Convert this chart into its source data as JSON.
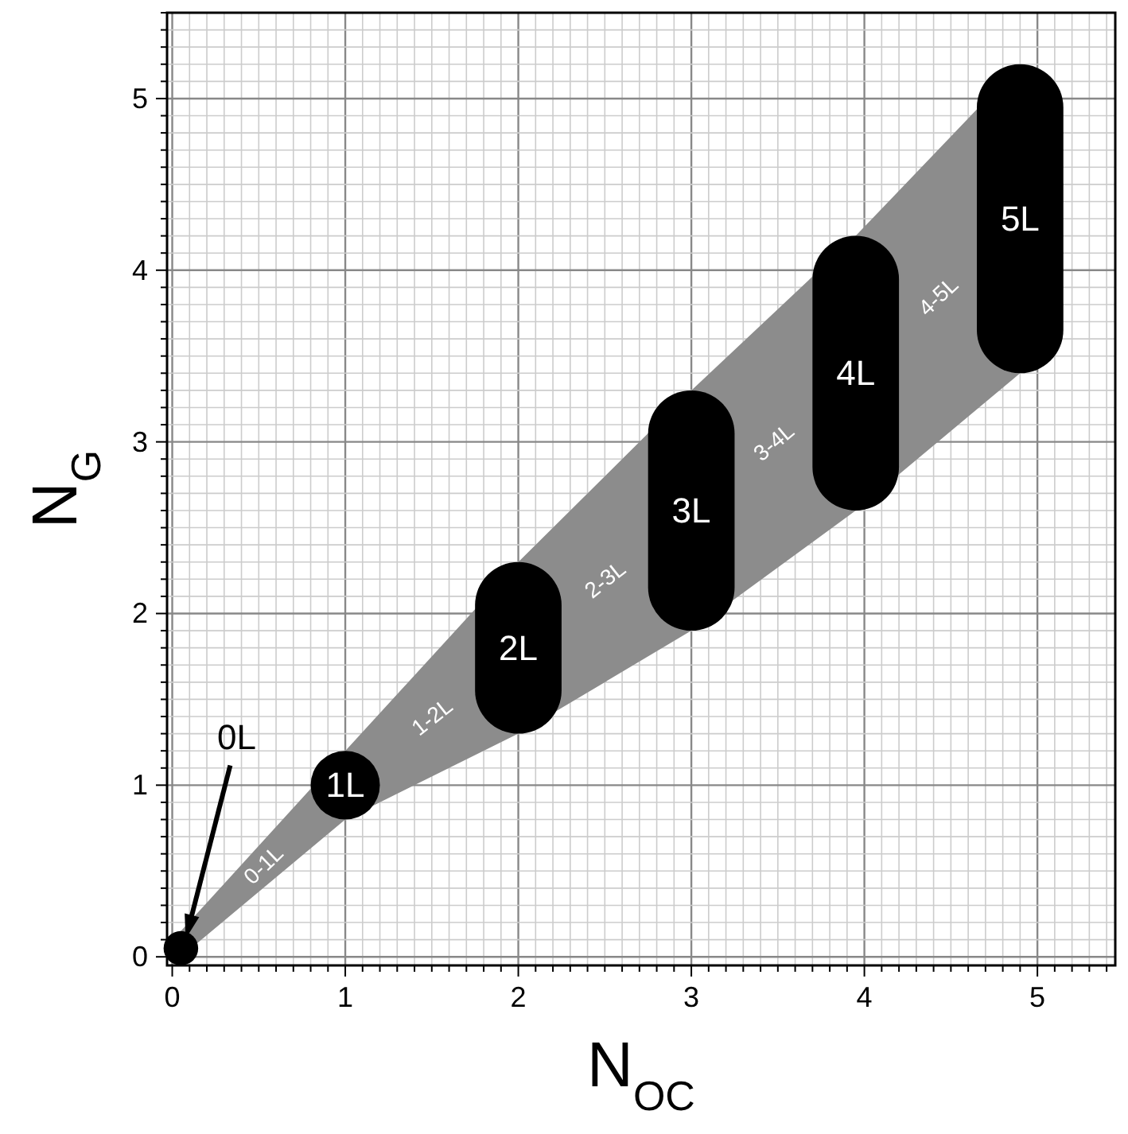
{
  "chart_data": {
    "type": "bar",
    "xlabel": "N$_{OC}$",
    "ylabel": "N$_{G}$",
    "xlim": [
      -0.03,
      5.45
    ],
    "ylim": [
      -0.05,
      5.5
    ],
    "grid": true,
    "xticks": [
      0,
      {
        "value": 0.1,
        "label": null
      },
      {
        "value": 0.2,
        "label": null
      },
      {
        "value": 0.3,
        "label": null
      },
      {
        "value": 0.4,
        "label": null
      },
      {
        "value": 0.5,
        "label": null
      },
      {
        "value": 0.6,
        "label": null
      },
      {
        "value": 0.7,
        "label": null
      },
      {
        "value": 0.8,
        "label": null
      },
      {
        "value": 0.9,
        "label": null
      },
      1,
      {
        "value": 1.1,
        "label": null
      },
      {
        "value": 1.2,
        "label": null
      },
      {
        "value": 1.3,
        "label": null
      },
      {
        "value": 1.4,
        "label": null
      },
      {
        "value": 1.5,
        "label": null
      },
      {
        "value": 1.6,
        "label": null
      },
      {
        "value": 1.7,
        "label": null
      },
      {
        "value": 1.8,
        "label": null
      },
      {
        "value": 1.9,
        "label": null
      },
      2,
      {
        "value": 2.1,
        "label": null
      },
      {
        "value": 2.2,
        "label": null
      },
      {
        "value": 2.3,
        "label": null
      },
      {
        "value": 2.4,
        "label": null
      },
      {
        "value": 2.5,
        "label": null
      },
      {
        "value": 2.6,
        "label": null
      },
      {
        "value": 2.7,
        "label": null
      },
      {
        "value": 2.8,
        "label": null
      },
      {
        "value": 2.9,
        "label": null
      },
      3,
      {
        "value": 3.1,
        "label": null
      },
      {
        "value": 3.2,
        "label": null
      },
      {
        "value": 3.3,
        "label": null
      },
      {
        "value": 3.4,
        "label": null
      },
      {
        "value": 3.5,
        "label": null
      },
      {
        "value": 3.6,
        "label": null
      },
      {
        "value": 3.7,
        "label": null
      },
      {
        "value": 3.8,
        "label": null
      },
      {
        "value": 3.9,
        "label": null
      },
      4,
      {
        "value": 4.1,
        "label": null
      },
      {
        "value": 4.2,
        "label": null
      },
      {
        "value": 4.3,
        "label": null
      },
      {
        "value": 4.4,
        "label": null
      },
      {
        "value": 4.5,
        "label": null
      },
      {
        "value": 4.6,
        "label": null
      },
      {
        "value": 4.7,
        "label": null
      },
      {
        "value": 4.8,
        "label": null
      },
      {
        "value": 4.9,
        "label": null
      },
      5,
      {
        "value": 5.1,
        "label": null
      },
      {
        "value": 5.2,
        "label": null
      },
      {
        "value": 5.3,
        "label": null
      },
      {
        "value": 5.4,
        "label": null
      }
    ],
    "yticks": [
      0,
      {
        "value": 0.1,
        "label": null
      },
      {
        "value": 0.2,
        "label": null
      },
      {
        "value": 0.3,
        "label": null
      },
      {
        "value": 0.4,
        "label": null
      },
      {
        "value": 0.5,
        "label": null
      },
      {
        "value": 0.6,
        "label": null
      },
      {
        "value": 0.7,
        "label": null
      },
      {
        "value": 0.8,
        "label": null
      },
      {
        "value": 0.9,
        "label": null
      },
      1,
      {
        "value": 1.1,
        "label": null
      },
      {
        "value": 1.2,
        "label": null
      },
      {
        "value": 1.3,
        "label": null
      },
      {
        "value": 1.4,
        "label": null
      },
      {
        "value": 1.5,
        "label": null
      },
      {
        "value": 1.6,
        "label": null
      },
      {
        "value": 1.7,
        "label": null
      },
      {
        "value": 1.8,
        "label": null
      },
      {
        "value": 1.9,
        "label": null
      },
      2,
      {
        "value": 2.1,
        "label": null
      },
      {
        "value": 2.2,
        "label": null
      },
      {
        "value": 2.3,
        "label": null
      },
      {
        "value": 2.4,
        "label": null
      },
      {
        "value": 2.5,
        "label": null
      },
      {
        "value": 2.6,
        "label": null
      },
      {
        "value": 2.7,
        "label": null
      },
      {
        "value": 2.8,
        "label": null
      },
      {
        "value": 2.9,
        "label": null
      },
      3,
      {
        "value": 3.1,
        "label": null
      },
      {
        "value": 3.2,
        "label": null
      },
      {
        "value": 3.3,
        "label": null
      },
      {
        "value": 3.4,
        "label": null
      },
      {
        "value": 3.5,
        "label": null
      },
      {
        "value": 3.6,
        "label": null
      },
      {
        "value": 3.7,
        "label": null
      },
      {
        "value": 3.8,
        "label": null
      },
      {
        "value": 3.9,
        "label": null
      },
      4,
      {
        "value": 4.1,
        "label": null
      },
      {
        "value": 4.2,
        "label": null
      },
      {
        "value": 4.3,
        "label": null
      },
      {
        "value": 4.4,
        "label": null
      },
      {
        "value": 4.5,
        "label": null
      },
      {
        "value": 4.6,
        "label": null
      },
      {
        "value": 4.7,
        "label": null
      },
      {
        "value": 4.8,
        "label": null
      },
      {
        "value": 4.9,
        "label": null
      },
      5,
      {
        "value": 5.1,
        "label": null
      },
      {
        "value": 5.2,
        "label": null
      },
      {
        "value": 5.3,
        "label": null
      },
      {
        "value": 5.4,
        "label": null
      },
      {
        "value": 5.5,
        "label": null
      }
    ],
    "series": [
      {
        "type": "line",
        "color": "#8c8c8c",
        "x": [
          0.05,
          1,
          2,
          3,
          3.95,
          4.9
        ],
        "values": [
          null,
          null,
          null,
          null,
          null,
          null
        ],
        "lower": [
          0,
          0.8,
          1.3,
          1.9,
          2.6,
          3.4
        ],
        "upper": [
          0.15,
          1.2,
          2.3,
          3.3,
          4.2,
          5.2
        ]
      },
      {
        "color": "#000000",
        "x": [
          0.05,
          1,
          2,
          3,
          3.95,
          4.9
        ],
        "base": [
          -0.05,
          0.8,
          1.3,
          1.9,
          2.6,
          3.4
        ],
        "values": [
          0.2,
          0.4,
          1.0,
          1.4,
          1.6,
          1.8
        ],
        "value_labels": [
          "0L",
          "1L",
          "2L",
          "3L",
          "4L",
          "5L"
        ]
      }
    ],
    "annotations": [
      "0-1L",
      "1-2L",
      "2-3L",
      "3-4L",
      "4-5L"
    ]
  }
}
